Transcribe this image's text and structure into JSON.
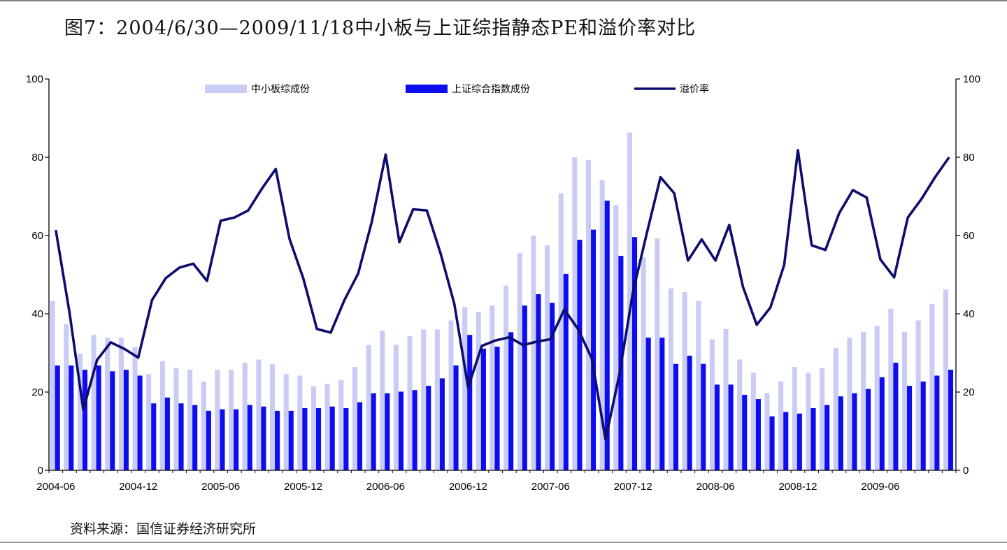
{
  "title": "图7：2004/6/30—2009/11/18中小板与上证综指静态PE和溢价率对比",
  "source": "资料来源：国信证券经济研究所",
  "colors": {
    "sme": "#c9ccf5",
    "sse": "#0d0df0",
    "premium": "#0d0d6e"
  },
  "chart_data": {
    "type": "bar",
    "y_left": {
      "lim": [
        0,
        100
      ],
      "ticks": [
        "0",
        "20",
        "40",
        "60",
        "80",
        "100"
      ]
    },
    "y_right": {
      "lim": [
        0,
        100
      ],
      "ticks": [
        "0",
        "20",
        "40",
        "60",
        "80",
        "100"
      ]
    },
    "x_tick_labels": [
      {
        "label": "2004-06",
        "index": 0
      },
      {
        "label": "2004-12",
        "index": 6
      },
      {
        "label": "2005-06",
        "index": 12
      },
      {
        "label": "2005-12",
        "index": 18
      },
      {
        "label": "2006-06",
        "index": 24
      },
      {
        "label": "2006-12",
        "index": 30
      },
      {
        "label": "2007-06",
        "index": 36
      },
      {
        "label": "2007-12",
        "index": 42
      },
      {
        "label": "2008-06",
        "index": 48
      },
      {
        "label": "2008-12",
        "index": 54
      },
      {
        "label": "2009-06",
        "index": 60
      }
    ],
    "legend_position": "top",
    "grid": false,
    "series": [
      {
        "name": "中小板综成份",
        "type": "bar",
        "values": [
          43.3,
          37.3,
          29.8,
          34.6,
          33.9,
          33.9,
          31.5,
          24.6,
          27.9,
          26.1,
          25.7,
          22.7,
          25.7,
          25.7,
          27.5,
          28.3,
          27.1,
          24.6,
          24.2,
          21.5,
          22.1,
          23.1,
          26.4,
          32.0,
          35.7,
          32.1,
          34.3,
          36.0,
          36.0,
          38.3,
          41.7,
          40.5,
          42.1,
          47.2,
          55.5,
          60.0,
          57.5,
          70.8,
          80.0,
          79.3,
          74.1,
          67.8,
          86.3,
          54.4,
          59.3,
          46.5,
          45.5,
          43.3,
          33.5,
          36.1,
          28.3,
          24.9,
          19.8,
          22.7,
          26.4,
          24.9,
          26.1,
          31.3,
          33.9,
          35.4,
          36.9,
          41.3,
          35.4,
          38.3,
          42.5,
          46.2
        ]
      },
      {
        "name": "上证综合指数成份",
        "type": "bar",
        "values": [
          26.8,
          26.8,
          25.7,
          26.8,
          25.3,
          25.7,
          24.2,
          17.1,
          18.6,
          17.1,
          16.7,
          15.2,
          15.6,
          15.6,
          16.7,
          16.3,
          15.2,
          15.2,
          15.9,
          15.9,
          16.3,
          15.9,
          17.4,
          19.7,
          19.7,
          20.1,
          20.5,
          21.6,
          23.5,
          26.8,
          34.6,
          31.1,
          31.6,
          35.3,
          42.1,
          45.0,
          42.8,
          50.2,
          58.9,
          61.5,
          68.9,
          54.8,
          59.6,
          33.9,
          33.9,
          27.2,
          29.3,
          27.2,
          21.9,
          21.9,
          19.3,
          18.2,
          13.8,
          14.9,
          14.5,
          15.9,
          16.7,
          18.9,
          19.7,
          20.8,
          23.8,
          27.5,
          21.6,
          22.7,
          24.2,
          25.7
        ]
      },
      {
        "name": "溢价率",
        "type": "line",
        "axis": "right",
        "values": [
          61.4,
          40.2,
          15.5,
          28.2,
          32.7,
          31.0,
          28.8,
          43.5,
          49.1,
          51.8,
          52.8,
          48.4,
          63.8,
          64.6,
          66.4,
          72.0,
          77.0,
          59.2,
          49.1,
          36.1,
          35.2,
          43.5,
          50.3,
          63.6,
          80.7,
          58.3,
          66.7,
          66.4,
          55.4,
          42.5,
          21.2,
          31.8,
          33.2,
          34.0,
          32.0,
          32.9,
          33.5,
          41.1,
          36.1,
          28.6,
          7.9,
          24.3,
          45.6,
          60.5,
          74.9,
          70.8,
          53.6,
          59.0,
          53.6,
          62.7,
          46.9,
          37.2,
          41.6,
          52.5,
          81.8,
          57.5,
          56.3,
          65.7,
          71.6,
          69.7,
          53.9,
          49.3,
          64.6,
          69.4,
          75.0,
          80.0
        ]
      }
    ]
  }
}
